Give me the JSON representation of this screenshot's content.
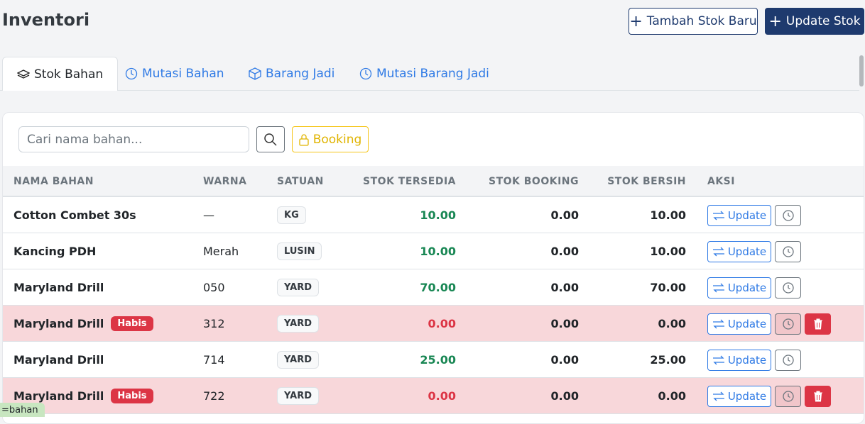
{
  "header": {
    "title": "Inventori",
    "buttons": [
      "Tambah Stok Baru",
      "Update Stok"
    ]
  },
  "tabs": [
    "Stok Bahan",
    "Mutasi Bahan",
    "Barang Jadi",
    "Mutasi Barang Jadi"
  ],
  "filter": {
    "search_placeholder": "Cari nama bahan...",
    "booking_button": "Booking"
  },
  "table": {
    "columns": [
      "NAMA BAHAN",
      "WARNA",
      "SATUAN",
      "STOK TERSEDIA",
      "STOK BOOKING",
      "STOK BERSIH",
      "AKSI"
    ],
    "action_label": "Update",
    "rows": [
      {
        "name": "Cotton Combet 30s",
        "color": "—",
        "unit": "KG",
        "available": "10.00",
        "booking": "0.00",
        "net": "10.00"
      },
      {
        "name": "Kancing PDH",
        "color": "Merah",
        "unit": "LUSIN",
        "available": "10.00",
        "booking": "0.00",
        "net": "10.00"
      },
      {
        "name": "Maryland Drill",
        "color": "050",
        "unit": "YARD",
        "available": "70.00",
        "booking": "0.00",
        "net": "70.00"
      },
      {
        "name": "Maryland Drill",
        "badge": "Habis",
        "color": "312",
        "unit": "YARD",
        "available": "0.00",
        "booking": "0.00",
        "net": "0.00"
      },
      {
        "name": "Maryland Drill",
        "color": "714",
        "unit": "YARD",
        "available": "25.00",
        "booking": "0.00",
        "net": "25.00"
      },
      {
        "name": "Maryland Drill",
        "badge": "Habis",
        "color": "722",
        "unit": "YARD",
        "available": "0.00",
        "booking": "0.00",
        "net": "0.00"
      }
    ]
  },
  "debug_tag": "=bahan"
}
